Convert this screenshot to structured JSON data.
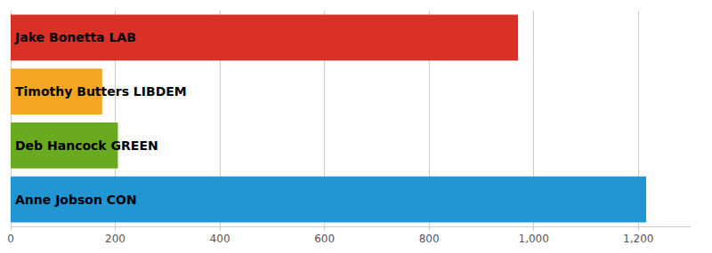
{
  "chart_data": {
    "type": "bar",
    "orientation": "horizontal",
    "categories": [
      "Anne Jobson CON",
      "Deb Hancock GREEN",
      "Timothy Butters LIBDEM",
      "Jake Bonetta LAB"
    ],
    "values": [
      1215,
      205,
      175,
      970
    ],
    "colors": [
      "#2196d3",
      "#6aaa1e",
      "#f5a623",
      "#d93027"
    ],
    "xlim": [
      0,
      1300
    ],
    "xticks": [
      0,
      200,
      400,
      600,
      800,
      {
        "value": 1000,
        "label": "1,000"
      },
      {
        "value": 1200,
        "label": "1,200"
      }
    ],
    "grid": true,
    "tick_labels": "x"
  }
}
